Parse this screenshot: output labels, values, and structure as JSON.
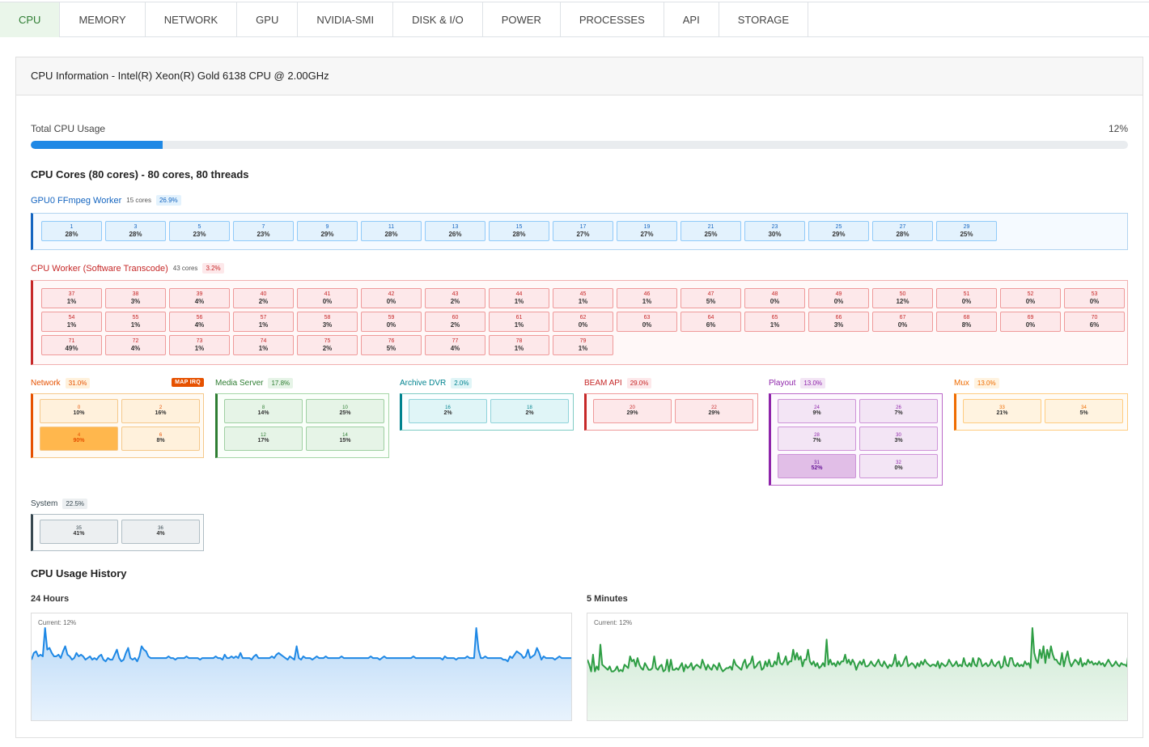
{
  "tabs": [
    {
      "label": "CPU",
      "active": true
    },
    {
      "label": "MEMORY"
    },
    {
      "label": "NETWORK"
    },
    {
      "label": "GPU"
    },
    {
      "label": "NVIDIA-SMI"
    },
    {
      "label": "DISK & I/O"
    },
    {
      "label": "POWER"
    },
    {
      "label": "PROCESSES"
    },
    {
      "label": "API"
    },
    {
      "label": "STORAGE"
    }
  ],
  "cpu_info": {
    "header": "CPU Information - Intel(R) Xeon(R) Gold 6138 CPU @ 2.00GHz",
    "total_label": "Total CPU Usage",
    "total_value": "12%",
    "total_fraction": 0.12,
    "cores_title": "CPU Cores (80 cores) - 80 cores, 80 threads"
  },
  "groups": {
    "gpu_worker": {
      "name": "GPU0 FFmpeg Worker",
      "sub": "15 cores",
      "pct": "26.9%",
      "color": "#1565c0",
      "cores": [
        [
          "1",
          "28%"
        ],
        [
          "3",
          "28%"
        ],
        [
          "5",
          "23%"
        ],
        [
          "7",
          "23%"
        ],
        [
          "9",
          "29%"
        ],
        [
          "11",
          "28%"
        ],
        [
          "13",
          "26%"
        ],
        [
          "15",
          "28%"
        ],
        [
          "17",
          "27%"
        ],
        [
          "19",
          "27%"
        ],
        [
          "21",
          "25%"
        ],
        [
          "23",
          "30%"
        ],
        [
          "25",
          "29%"
        ],
        [
          "27",
          "28%"
        ],
        [
          "29",
          "25%"
        ]
      ]
    },
    "cpu_worker": {
      "name": "CPU Worker (Software Transcode)",
      "sub": "43 cores",
      "pct": "3.2%",
      "color": "#c62828",
      "cores": [
        [
          "37",
          "1%"
        ],
        [
          "38",
          "3%"
        ],
        [
          "39",
          "4%"
        ],
        [
          "40",
          "2%"
        ],
        [
          "41",
          "0%"
        ],
        [
          "42",
          "0%"
        ],
        [
          "43",
          "2%"
        ],
        [
          "44",
          "1%"
        ],
        [
          "45",
          "1%"
        ],
        [
          "46",
          "1%"
        ],
        [
          "47",
          "5%"
        ],
        [
          "48",
          "0%"
        ],
        [
          "49",
          "0%"
        ],
        [
          "50",
          "12%"
        ],
        [
          "51",
          "0%"
        ],
        [
          "52",
          "0%"
        ],
        [
          "53",
          "0%"
        ],
        [
          "54",
          "1%"
        ],
        [
          "55",
          "1%"
        ],
        [
          "56",
          "4%"
        ],
        [
          "57",
          "1%"
        ],
        [
          "58",
          "3%"
        ],
        [
          "59",
          "0%"
        ],
        [
          "60",
          "2%"
        ],
        [
          "61",
          "1%"
        ],
        [
          "62",
          "0%"
        ],
        [
          "63",
          "0%"
        ],
        [
          "64",
          "6%"
        ],
        [
          "65",
          "1%"
        ],
        [
          "66",
          "3%"
        ],
        [
          "67",
          "0%"
        ],
        [
          "68",
          "8%"
        ],
        [
          "69",
          "0%"
        ],
        [
          "70",
          "6%"
        ],
        [
          "71",
          "49%"
        ],
        [
          "72",
          "4%"
        ],
        [
          "73",
          "1%"
        ],
        [
          "74",
          "1%"
        ],
        [
          "75",
          "2%"
        ],
        [
          "76",
          "5%"
        ],
        [
          "77",
          "4%"
        ],
        [
          "78",
          "1%"
        ],
        [
          "79",
          "1%"
        ]
      ]
    },
    "network": {
      "name": "Network",
      "pct": "31.0%",
      "badge": "MAP IRQ",
      "color": "#e65100",
      "cores": [
        [
          "0",
          "10%"
        ],
        [
          "2",
          "16%"
        ],
        [
          "4",
          "90%"
        ],
        [
          "6",
          "8%"
        ]
      ]
    },
    "media": {
      "name": "Media Server",
      "pct": "17.8%",
      "color": "#2e7d32",
      "cores": [
        [
          "8",
          "14%"
        ],
        [
          "10",
          "25%"
        ],
        [
          "12",
          "17%"
        ],
        [
          "14",
          "15%"
        ]
      ]
    },
    "archive": {
      "name": "Archive DVR",
      "pct": "2.0%",
      "color": "#00838f",
      "cores": [
        [
          "16",
          "2%"
        ],
        [
          "18",
          "2%"
        ]
      ]
    },
    "beam": {
      "name": "BEAM API",
      "pct": "29.0%",
      "color": "#c62828",
      "cores": [
        [
          "20",
          "29%"
        ],
        [
          "22",
          "29%"
        ]
      ]
    },
    "playout": {
      "name": "Playout",
      "pct": "13.0%",
      "color": "#8e24aa",
      "cores": [
        [
          "24",
          "9%"
        ],
        [
          "26",
          "7%"
        ],
        [
          "28",
          "7%"
        ],
        [
          "30",
          "3%"
        ],
        [
          "31",
          "52%"
        ],
        [
          "32",
          "0%"
        ]
      ]
    },
    "mux": {
      "name": "Mux",
      "pct": "13.0%",
      "color": "#ef6c00",
      "cores": [
        [
          "33",
          "21%"
        ],
        [
          "34",
          "5%"
        ]
      ]
    },
    "system": {
      "name": "System",
      "pct": "22.5%",
      "color": "#455a64",
      "cores": [
        [
          "35",
          "41%"
        ],
        [
          "36",
          "4%"
        ]
      ]
    }
  },
  "history": {
    "title": "CPU Usage History",
    "left_title": "24 Hours",
    "right_title": "5 Minutes",
    "left_current": "Current: 12%",
    "right_current": "Current: 12%",
    "left_color": "#1e88e5",
    "right_color": "#2e9e44"
  },
  "chart_data": [
    {
      "type": "area",
      "title": "24 Hours",
      "ylim": [
        0,
        100
      ],
      "values": [
        12,
        16,
        17,
        14,
        15,
        14,
        42,
        18,
        19,
        16,
        14,
        14,
        15,
        13,
        17,
        20,
        15,
        14,
        12,
        13,
        16,
        14,
        15,
        14,
        12,
        13,
        14,
        12,
        13,
        12,
        14,
        15,
        12,
        11,
        13,
        12,
        12,
        15,
        18,
        13,
        11,
        12,
        16,
        19,
        13,
        12,
        13,
        11,
        14,
        20,
        18,
        17,
        14,
        13,
        13,
        13,
        13,
        13,
        13,
        13,
        13,
        14,
        13,
        13,
        12,
        13,
        13,
        13,
        13,
        14,
        13,
        13,
        13,
        13,
        13,
        12,
        13,
        13,
        13,
        13,
        13,
        13,
        14,
        13,
        13,
        12,
        15,
        13,
        13,
        14,
        13,
        14,
        13,
        16,
        13,
        13,
        13,
        13,
        12,
        14,
        15,
        13,
        13,
        13,
        13,
        13,
        13,
        14,
        13,
        15,
        16,
        15,
        14,
        13,
        12,
        14,
        13,
        12,
        20,
        13,
        12,
        14,
        13,
        13,
        13,
        12,
        13,
        14,
        13,
        13,
        13,
        14,
        13,
        13,
        13,
        13,
        13,
        13,
        14,
        13,
        13,
        13,
        13,
        13,
        13,
        13,
        13,
        13,
        13,
        13,
        13,
        14,
        13,
        13,
        13,
        12,
        13,
        14,
        13,
        13,
        13,
        13,
        13,
        13,
        13,
        13,
        13,
        13,
        13,
        13,
        14,
        13,
        13,
        13,
        13,
        13,
        13,
        13,
        13,
        13,
        13,
        13,
        13,
        12,
        14,
        13,
        13,
        13,
        13,
        12,
        13,
        13,
        13,
        13,
        14,
        13,
        13,
        13,
        32,
        18,
        13,
        13,
        14,
        13,
        13,
        13,
        13,
        13,
        13,
        13,
        12,
        12,
        11,
        14,
        13,
        15,
        17,
        16,
        15,
        13,
        14,
        18,
        13,
        14,
        15,
        19,
        16,
        12,
        14,
        13,
        13,
        13,
        13,
        12,
        13,
        14,
        13,
        13,
        13,
        13,
        13,
        13
      ]
    },
    {
      "type": "area",
      "title": "5 Minutes",
      "ylim": [
        0,
        100
      ],
      "values": [
        12,
        9,
        5,
        15,
        5,
        8,
        6,
        21,
        9,
        8,
        7,
        6,
        8,
        5,
        5,
        6,
        8,
        5,
        6,
        5,
        9,
        8,
        7,
        14,
        11,
        12,
        8,
        13,
        9,
        7,
        6,
        10,
        8,
        6,
        6,
        7,
        14,
        7,
        6,
        8,
        9,
        5,
        6,
        12,
        5,
        12,
        6,
        6,
        7,
        6,
        8,
        10,
        5,
        9,
        7,
        8,
        10,
        6,
        8,
        9,
        8,
        7,
        12,
        9,
        6,
        9,
        7,
        6,
        9,
        8,
        6,
        10,
        7,
        5,
        6,
        7,
        7,
        8,
        6,
        12,
        9,
        8,
        7,
        6,
        10,
        12,
        7,
        9,
        10,
        14,
        7,
        8,
        10,
        11,
        6,
        7,
        11,
        8,
        12,
        8,
        8,
        11,
        9,
        16,
        10,
        9,
        11,
        14,
        9,
        11,
        11,
        18,
        12,
        16,
        12,
        14,
        8,
        12,
        12,
        18,
        11,
        9,
        11,
        8,
        10,
        7,
        8,
        10,
        8,
        24,
        9,
        12,
        9,
        10,
        8,
        11,
        9,
        11,
        11,
        15,
        10,
        12,
        9,
        12,
        10,
        6,
        9,
        11,
        9,
        12,
        8,
        8,
        9,
        11,
        9,
        8,
        10,
        12,
        9,
        8,
        11,
        9,
        7,
        9,
        8,
        10,
        15,
        8,
        11,
        8,
        9,
        12,
        14,
        8,
        9,
        10,
        9,
        7,
        10,
        8,
        11,
        9,
        12,
        10,
        9,
        8,
        9,
        9,
        8,
        11,
        7,
        10,
        9,
        8,
        9,
        12,
        10,
        8,
        9,
        11,
        8,
        9,
        8,
        13,
        9,
        8,
        10,
        8,
        13,
        9,
        8,
        13,
        12,
        8,
        9,
        10,
        8,
        9,
        12,
        9,
        8,
        10,
        11,
        7,
        8,
        14,
        9,
        8,
        13,
        13,
        9,
        8,
        10,
        8,
        9,
        8,
        11,
        9,
        10,
        7,
        48,
        16,
        12,
        10,
        18,
        13,
        20,
        10,
        18,
        13,
        20,
        15,
        12,
        12,
        10,
        9,
        16,
        8,
        13,
        17,
        11,
        8,
        10,
        12,
        11,
        9,
        13,
        8,
        10,
        9,
        12,
        10,
        11,
        9,
        10,
        9,
        11,
        9,
        10,
        8,
        10,
        12,
        10,
        8,
        9,
        11,
        9,
        8,
        10,
        9,
        9,
        8,
        18
      ]
    }
  ]
}
